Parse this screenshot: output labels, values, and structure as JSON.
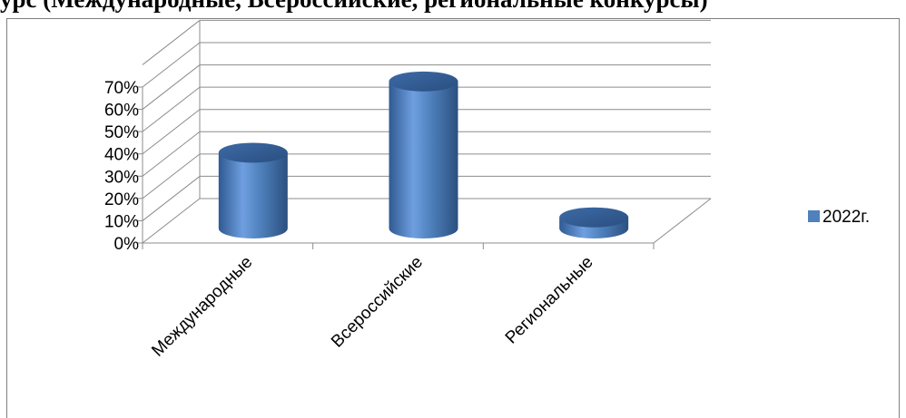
{
  "header": {
    "title_fragment": "урс  (Международные,  Всероссийские,  региональные  конкурсы)"
  },
  "chart_data": {
    "type": "bar",
    "style": "3d-cylinder",
    "categories": [
      "Международные",
      "Всероссийские",
      "Региональные"
    ],
    "series": [
      {
        "name": "2022г.",
        "values": [
          0.34,
          0.66,
          0.05
        ],
        "color": "#4f81bd"
      }
    ],
    "y_ticks": [
      "0%",
      "10%",
      "20%",
      "30%",
      "40%",
      "50%",
      "60%",
      "70%"
    ],
    "ylim": [
      0,
      0.7
    ],
    "grid": true,
    "legend": "right"
  }
}
